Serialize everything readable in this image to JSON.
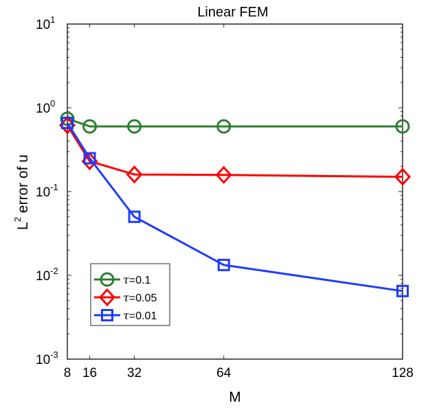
{
  "chart_data": {
    "type": "line",
    "title": "Linear FEM",
    "xlabel": "M",
    "ylabel": "L2 error of u",
    "ylabel_main": "L",
    "ylabel_sup": "2",
    "ylabel_rest": " error of u",
    "xscale": "linear",
    "yscale": "log",
    "xlim": [
      8,
      128
    ],
    "ylim": [
      0.001,
      10
    ],
    "xticks": [
      8,
      16,
      32,
      64,
      128
    ],
    "yticks": [
      {
        "base": "10",
        "exp": "-3",
        "value": 0.001
      },
      {
        "base": "10",
        "exp": "-2",
        "value": 0.01
      },
      {
        "base": "10",
        "exp": "-1",
        "value": 0.1
      },
      {
        "base": "10",
        "exp": "0",
        "value": 1
      },
      {
        "base": "10",
        "exp": "1",
        "value": 10
      }
    ],
    "legend_position": "bottom-left",
    "x": [
      8,
      16,
      32,
      64,
      128
    ],
    "series": [
      {
        "name": "τ=0.1",
        "tau": "τ",
        "rest": "=0.1",
        "color": "#2e7d32",
        "marker": "circle",
        "values": [
          0.74,
          0.6,
          0.6,
          0.6,
          0.6
        ]
      },
      {
        "name": "τ=0.05",
        "tau": "τ",
        "rest": "=0.05",
        "color": "#ff0000",
        "marker": "diamond",
        "values": [
          0.62,
          0.23,
          0.16,
          0.158,
          0.15
        ]
      },
      {
        "name": "τ=0.01",
        "tau": "τ",
        "rest": "=0.01",
        "color": "#1e3cff",
        "marker": "square",
        "values": [
          0.66,
          0.25,
          0.05,
          0.0133,
          0.0065
        ]
      }
    ]
  }
}
